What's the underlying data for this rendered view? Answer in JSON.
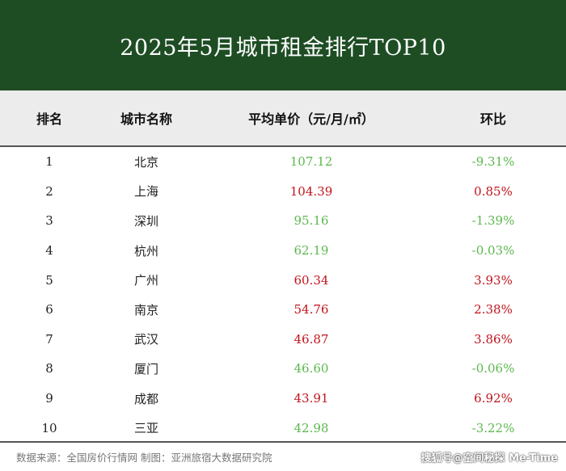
{
  "title": "2025年5月城市租金排行TOP10",
  "headers": {
    "rank": "排名",
    "city": "城市名称",
    "price": "平均单价（元/月/㎡）",
    "mom": "环比"
  },
  "colors": {
    "header_bg": "#1e4d24",
    "increase": "#c0141c",
    "decrease": "#5bb84d"
  },
  "chart_data": {
    "type": "table",
    "title": "2025年5月城市租金排行TOP10",
    "columns": [
      "排名",
      "城市名称",
      "平均单价（元/月/㎡）",
      "环比"
    ],
    "rows": [
      {
        "rank": "1",
        "city": "北京",
        "price": "107.12",
        "mom": "-9.31%",
        "trend": "down"
      },
      {
        "rank": "2",
        "city": "上海",
        "price": "104.39",
        "mom": "0.85%",
        "trend": "up"
      },
      {
        "rank": "3",
        "city": "深圳",
        "price": "95.16",
        "mom": "-1.39%",
        "trend": "down"
      },
      {
        "rank": "4",
        "city": "杭州",
        "price": "62.19",
        "mom": "-0.03%",
        "trend": "down"
      },
      {
        "rank": "5",
        "city": "广州",
        "price": "60.34",
        "mom": "3.93%",
        "trend": "up"
      },
      {
        "rank": "6",
        "city": "南京",
        "price": "54.76",
        "mom": "2.38%",
        "trend": "up"
      },
      {
        "rank": "7",
        "city": "武汉",
        "price": "46.87",
        "mom": "3.86%",
        "trend": "up"
      },
      {
        "rank": "8",
        "city": "厦门",
        "price": "46.60",
        "mom": "-0.06%",
        "trend": "down"
      },
      {
        "rank": "9",
        "city": "成都",
        "price": "43.91",
        "mom": "6.92%",
        "trend": "up"
      },
      {
        "rank": "10",
        "city": "三亚",
        "price": "42.98",
        "mom": "-3.22%",
        "trend": "down"
      }
    ]
  },
  "footer": {
    "source": "数据来源：全国房价行情网   制图：亚洲旅宿大数据研究院",
    "watermark": "搜狐号@空间秘探 Me-Time"
  }
}
